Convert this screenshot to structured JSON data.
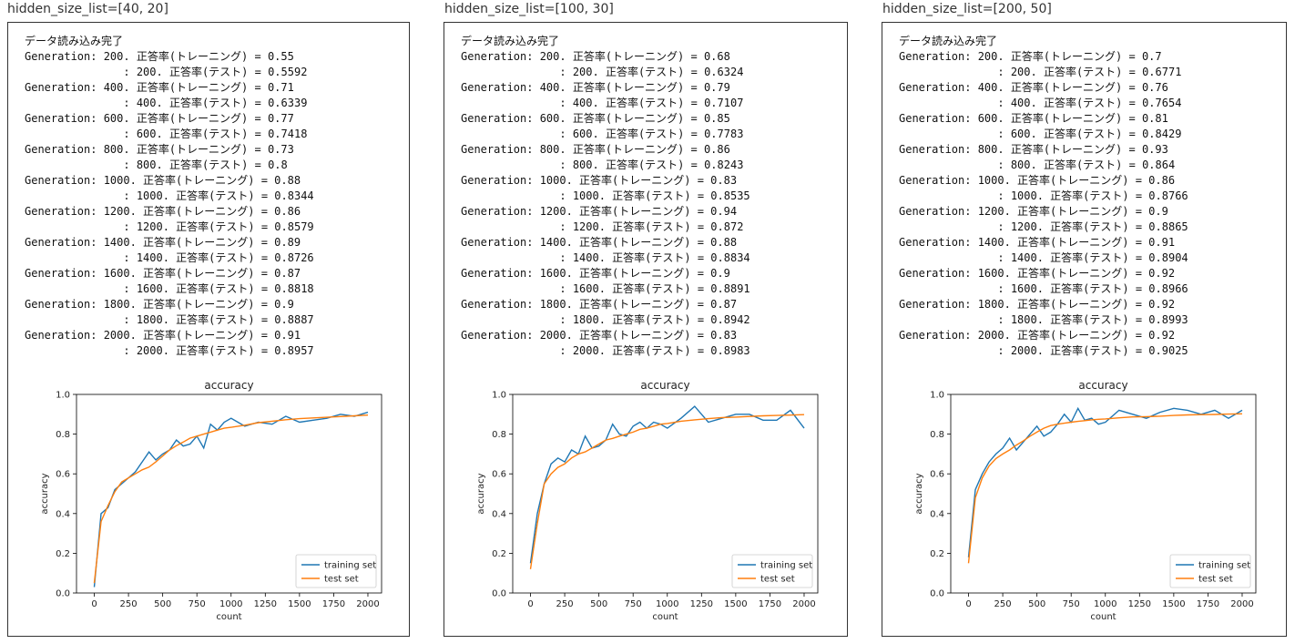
{
  "panels": [
    {
      "title": "hidden_size_list=[40, 20]",
      "log_header": "データ読み込み完了",
      "log": [
        "Generation: 200. 正答率(トレーニング) = 0.55",
        "               : 200. 正答率(テスト) = 0.5592",
        "Generation: 400. 正答率(トレーニング) = 0.71",
        "               : 400. 正答率(テスト) = 0.6339",
        "Generation: 600. 正答率(トレーニング) = 0.77",
        "               : 600. 正答率(テスト) = 0.7418",
        "Generation: 800. 正答率(トレーニング) = 0.73",
        "               : 800. 正答率(テスト) = 0.8",
        "Generation: 1000. 正答率(トレーニング) = 0.88",
        "               : 1000. 正答率(テスト) = 0.8344",
        "Generation: 1200. 正答率(トレーニング) = 0.86",
        "               : 1200. 正答率(テスト) = 0.8579",
        "Generation: 1400. 正答率(トレーニング) = 0.89",
        "               : 1400. 正答率(テスト) = 0.8726",
        "Generation: 1600. 正答率(トレーニング) = 0.87",
        "               : 1600. 正答率(テスト) = 0.8818",
        "Generation: 1800. 正答率(トレーニング) = 0.9",
        "               : 1800. 正答率(テスト) = 0.8887",
        "Generation: 2000. 正答率(トレーニング) = 0.91",
        "               : 2000. 正答率(テスト) = 0.8957"
      ]
    },
    {
      "title": "hidden_size_list=[100, 30]",
      "log_header": "データ読み込み完了",
      "log": [
        "Generation: 200. 正答率(トレーニング) = 0.68",
        "               : 200. 正答率(テスト) = 0.6324",
        "Generation: 400. 正答率(トレーニング) = 0.79",
        "               : 400. 正答率(テスト) = 0.7107",
        "Generation: 600. 正答率(トレーニング) = 0.85",
        "               : 600. 正答率(テスト) = 0.7783",
        "Generation: 800. 正答率(トレーニング) = 0.86",
        "               : 800. 正答率(テスト) = 0.8243",
        "Generation: 1000. 正答率(トレーニング) = 0.83",
        "               : 1000. 正答率(テスト) = 0.8535",
        "Generation: 1200. 正答率(トレーニング) = 0.94",
        "               : 1200. 正答率(テスト) = 0.872",
        "Generation: 1400. 正答率(トレーニング) = 0.88",
        "               : 1400. 正答率(テスト) = 0.8834",
        "Generation: 1600. 正答率(トレーニング) = 0.9",
        "               : 1600. 正答率(テスト) = 0.8891",
        "Generation: 1800. 正答率(トレーニング) = 0.87",
        "               : 1800. 正答率(テスト) = 0.8942",
        "Generation: 2000. 正答率(トレーニング) = 0.83",
        "               : 2000. 正答率(テスト) = 0.8983"
      ]
    },
    {
      "title": "hidden_size_list=[200, 50]",
      "log_header": "データ読み込み完了",
      "log": [
        "Generation: 200. 正答率(トレーニング) = 0.7",
        "               : 200. 正答率(テスト) = 0.6771",
        "Generation: 400. 正答率(トレーニング) = 0.76",
        "               : 400. 正答率(テスト) = 0.7654",
        "Generation: 600. 正答率(トレーニング) = 0.81",
        "               : 600. 正答率(テスト) = 0.8429",
        "Generation: 800. 正答率(トレーニング) = 0.93",
        "               : 800. 正答率(テスト) = 0.864",
        "Generation: 1000. 正答率(トレーニング) = 0.86",
        "               : 1000. 正答率(テスト) = 0.8766",
        "Generation: 1200. 正答率(トレーニング) = 0.9",
        "               : 1200. 正答率(テスト) = 0.8865",
        "Generation: 1400. 正答率(トレーニング) = 0.91",
        "               : 1400. 正答率(テスト) = 0.8904",
        "Generation: 1600. 正答率(トレーニング) = 0.92",
        "               : 1600. 正答率(テスト) = 0.8966",
        "Generation: 1800. 正答率(トレーニング) = 0.92",
        "               : 1800. 正答率(テスト) = 0.8993",
        "Generation: 2000. 正答率(トレーニング) = 0.92",
        "               : 2000. 正答率(テスト) = 0.9025"
      ]
    }
  ],
  "chart_data": [
    {
      "type": "line",
      "title": "accuracy",
      "xlabel": "count",
      "ylabel": "accuracy",
      "xlim": [
        -130,
        2100
      ],
      "ylim": [
        0,
        1.0
      ],
      "xticks": [
        0,
        250,
        500,
        750,
        1000,
        1250,
        1500,
        1750,
        2000
      ],
      "yticks": [
        0.0,
        0.2,
        0.4,
        0.6,
        0.8,
        1.0
      ],
      "legend_position": "lower-right",
      "series": [
        {
          "name": "training set",
          "color": "#1f77b4",
          "x": [
            0,
            50,
            100,
            150,
            200,
            250,
            300,
            350,
            400,
            450,
            500,
            550,
            600,
            650,
            700,
            750,
            800,
            850,
            900,
            950,
            1000,
            1100,
            1200,
            1300,
            1400,
            1500,
            1600,
            1700,
            1800,
            1900,
            2000
          ],
          "y": [
            0.03,
            0.4,
            0.43,
            0.52,
            0.55,
            0.58,
            0.61,
            0.66,
            0.71,
            0.67,
            0.7,
            0.72,
            0.77,
            0.74,
            0.75,
            0.79,
            0.73,
            0.85,
            0.82,
            0.86,
            0.88,
            0.84,
            0.86,
            0.85,
            0.89,
            0.86,
            0.87,
            0.88,
            0.9,
            0.89,
            0.91
          ]
        },
        {
          "name": "test set",
          "color": "#ff7f0e",
          "x": [
            0,
            50,
            100,
            150,
            200,
            250,
            300,
            350,
            400,
            450,
            500,
            550,
            600,
            650,
            700,
            750,
            800,
            850,
            900,
            950,
            1000,
            1100,
            1200,
            1300,
            1400,
            1500,
            1600,
            1700,
            1800,
            1900,
            2000
          ],
          "y": [
            0.05,
            0.36,
            0.44,
            0.51,
            0.5592,
            0.58,
            0.6,
            0.62,
            0.6339,
            0.66,
            0.69,
            0.72,
            0.7418,
            0.76,
            0.78,
            0.79,
            0.8,
            0.81,
            0.82,
            0.83,
            0.8344,
            0.845,
            0.8579,
            0.865,
            0.8726,
            0.878,
            0.8818,
            0.885,
            0.8887,
            0.892,
            0.8957
          ]
        }
      ]
    },
    {
      "type": "line",
      "title": "accuracy",
      "xlabel": "count",
      "ylabel": "accuracy",
      "xlim": [
        -130,
        2100
      ],
      "ylim": [
        0,
        1.0
      ],
      "xticks": [
        0,
        250,
        500,
        750,
        1000,
        1250,
        1500,
        1750,
        2000
      ],
      "yticks": [
        0.0,
        0.2,
        0.4,
        0.6,
        0.8,
        1.0
      ],
      "legend_position": "lower-right",
      "series": [
        {
          "name": "training set",
          "color": "#1f77b4",
          "x": [
            0,
            50,
            100,
            150,
            200,
            250,
            300,
            350,
            400,
            450,
            500,
            550,
            600,
            650,
            700,
            750,
            800,
            850,
            900,
            950,
            1000,
            1100,
            1200,
            1300,
            1400,
            1500,
            1600,
            1700,
            1800,
            1900,
            2000
          ],
          "y": [
            0.15,
            0.4,
            0.55,
            0.65,
            0.68,
            0.66,
            0.72,
            0.7,
            0.79,
            0.73,
            0.74,
            0.77,
            0.85,
            0.8,
            0.79,
            0.84,
            0.86,
            0.83,
            0.86,
            0.85,
            0.83,
            0.88,
            0.94,
            0.86,
            0.88,
            0.9,
            0.9,
            0.87,
            0.87,
            0.92,
            0.83
          ]
        },
        {
          "name": "test set",
          "color": "#ff7f0e",
          "x": [
            0,
            50,
            100,
            150,
            200,
            250,
            300,
            350,
            400,
            450,
            500,
            550,
            600,
            650,
            700,
            750,
            800,
            850,
            900,
            950,
            1000,
            1100,
            1200,
            1300,
            1400,
            1500,
            1600,
            1700,
            1800,
            1900,
            2000
          ],
          "y": [
            0.12,
            0.35,
            0.55,
            0.6,
            0.6324,
            0.65,
            0.68,
            0.7,
            0.7107,
            0.73,
            0.75,
            0.77,
            0.7783,
            0.79,
            0.8,
            0.81,
            0.8243,
            0.83,
            0.84,
            0.85,
            0.8535,
            0.865,
            0.872,
            0.878,
            0.8834,
            0.886,
            0.8891,
            0.892,
            0.8942,
            0.896,
            0.8983
          ]
        }
      ]
    },
    {
      "type": "line",
      "title": "accuracy",
      "xlabel": "count",
      "ylabel": "accuracy",
      "xlim": [
        -130,
        2100
      ],
      "ylim": [
        0,
        1.0
      ],
      "xticks": [
        0,
        250,
        500,
        750,
        1000,
        1250,
        1500,
        1750,
        2000
      ],
      "yticks": [
        0.0,
        0.2,
        0.4,
        0.6,
        0.8,
        1.0
      ],
      "legend_position": "lower-right",
      "series": [
        {
          "name": "training set",
          "color": "#1f77b4",
          "x": [
            0,
            50,
            100,
            150,
            200,
            250,
            300,
            350,
            400,
            450,
            500,
            550,
            600,
            650,
            700,
            750,
            800,
            850,
            900,
            950,
            1000,
            1100,
            1200,
            1300,
            1400,
            1500,
            1600,
            1700,
            1800,
            1900,
            2000
          ],
          "y": [
            0.18,
            0.52,
            0.6,
            0.66,
            0.7,
            0.73,
            0.78,
            0.72,
            0.76,
            0.8,
            0.84,
            0.79,
            0.81,
            0.85,
            0.9,
            0.86,
            0.93,
            0.87,
            0.88,
            0.85,
            0.86,
            0.92,
            0.9,
            0.88,
            0.91,
            0.93,
            0.92,
            0.9,
            0.92,
            0.88,
            0.92
          ]
        },
        {
          "name": "test set",
          "color": "#ff7f0e",
          "x": [
            0,
            50,
            100,
            150,
            200,
            250,
            300,
            350,
            400,
            450,
            500,
            550,
            600,
            650,
            700,
            750,
            800,
            850,
            900,
            950,
            1000,
            1100,
            1200,
            1300,
            1400,
            1500,
            1600,
            1700,
            1800,
            1900,
            2000
          ],
          "y": [
            0.15,
            0.48,
            0.58,
            0.64,
            0.6771,
            0.7,
            0.72,
            0.745,
            0.7654,
            0.79,
            0.81,
            0.83,
            0.8429,
            0.85,
            0.855,
            0.86,
            0.864,
            0.868,
            0.872,
            0.875,
            0.8766,
            0.882,
            0.8865,
            0.888,
            0.8904,
            0.894,
            0.8966,
            0.898,
            0.8993,
            0.901,
            0.9025
          ]
        }
      ]
    }
  ]
}
